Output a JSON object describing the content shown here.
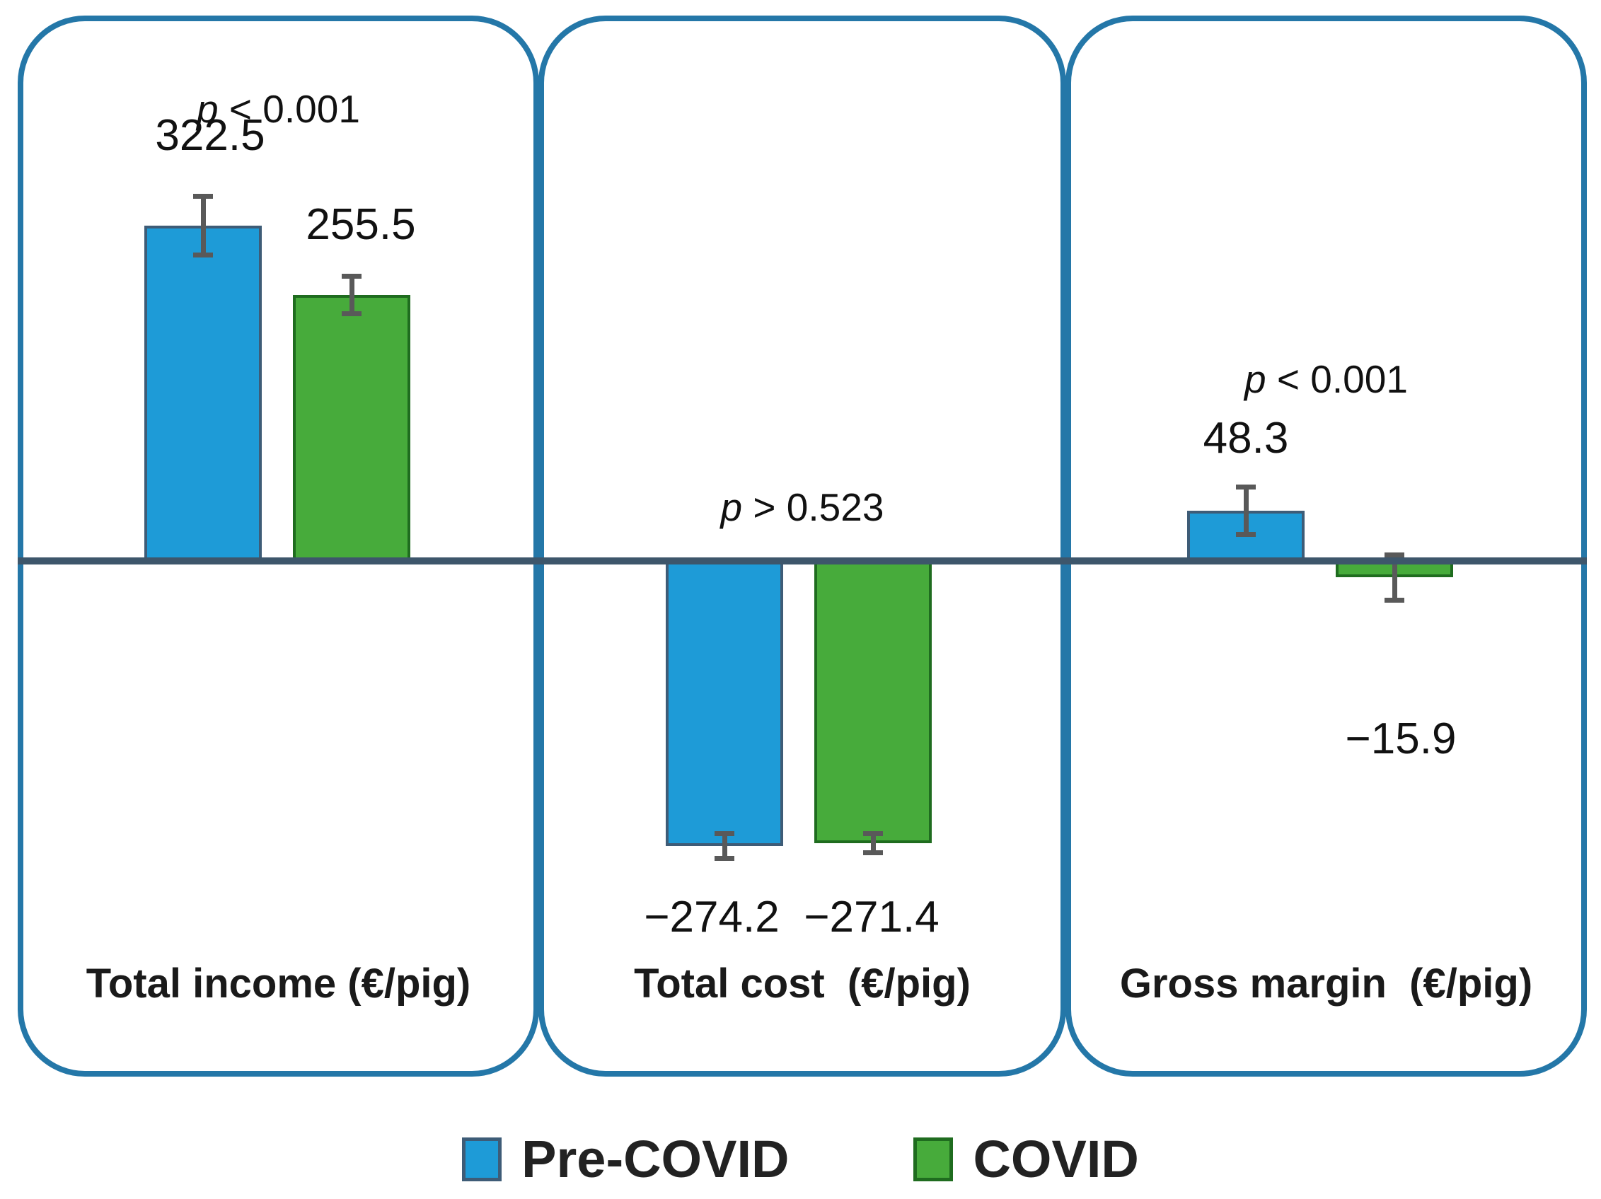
{
  "figure_title": "",
  "panels": [
    {
      "label": "Total income (€/pig)",
      "p_var": "p",
      "p_rest": " < 0.001"
    },
    {
      "label": "Total cost  (€/pig)",
      "p_var": "p",
      "p_rest": " > 0.523"
    },
    {
      "label": "Gross margin  (€/pig)",
      "p_var": "p",
      "p_rest": " < 0.001"
    }
  ],
  "legend": {
    "items": [
      {
        "label": "Pre-COVID",
        "color": "#1e9bd7"
      },
      {
        "label": "COVID",
        "color": "#47ab3b"
      }
    ]
  },
  "colors": {
    "pre_covid_fill": "#1e9bd7",
    "pre_covid_border": "#3e5c77",
    "covid_fill": "#47ab3b",
    "covid_border": "#1f6c1f",
    "panel_border": "#2477a8",
    "zero_line": "#3d566b",
    "error_bar": "#595959"
  },
  "chart_data": {
    "type": "bar",
    "categories": [
      "Total income (€/pig)",
      "Total cost (€/pig)",
      "Gross margin (€/pig)"
    ],
    "series": [
      {
        "name": "Pre-COVID",
        "color": "#1e9bd7",
        "values": [
          322.5,
          -274.2,
          48.3
        ],
        "errors": [
          28,
          12,
          23
        ]
      },
      {
        "name": "COVID",
        "color": "#47ab3b",
        "values": [
          255.5,
          -271.4,
          -15.9
        ],
        "errors": [
          18,
          9,
          22
        ]
      }
    ],
    "value_labels": [
      [
        "322.5",
        "255.5"
      ],
      [
        "−274.2",
        "−271.4"
      ],
      [
        "48.3",
        "−15.9"
      ]
    ],
    "p_labels": [
      "p < 0.001",
      "p > 0.523",
      "p < 0.001"
    ],
    "baseline": 0,
    "ylabel": "€/pig",
    "grid": false,
    "legend_position": "bottom"
  }
}
